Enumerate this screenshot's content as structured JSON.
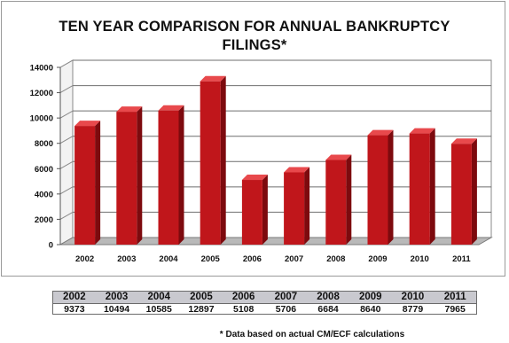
{
  "chart_data": {
    "type": "bar",
    "title_lines": [
      "TEN YEAR COMPARISON FOR ANNUAL BANKRUPTCY",
      "FILINGS*"
    ],
    "categories": [
      "2002",
      "2003",
      "2004",
      "2005",
      "2006",
      "2007",
      "2008",
      "2009",
      "2010",
      "2011"
    ],
    "values": [
      9373,
      10494,
      10585,
      12897,
      5108,
      5706,
      6684,
      8640,
      8779,
      7965
    ],
    "yticks": [
      "0",
      "2000",
      "4000",
      "6000",
      "8000",
      "10000",
      "12000",
      "14000"
    ],
    "ylim": [
      0,
      14000
    ],
    "grid": true,
    "legend": "none",
    "colors": {
      "bar_front": "#c0161b",
      "bar_side": "#7d0a0e",
      "bar_top": "#e8494c"
    }
  },
  "table": {
    "years": [
      "2002",
      "2003",
      "2004",
      "2005",
      "2006",
      "2007",
      "2008",
      "2009",
      "2010",
      "2011"
    ],
    "values": [
      "9373",
      "10494",
      "10585",
      "12897",
      "5108",
      "5706",
      "6684",
      "8640",
      "8779",
      "7965"
    ]
  },
  "footnote": "* Data based on actual CM/ECF calculations"
}
